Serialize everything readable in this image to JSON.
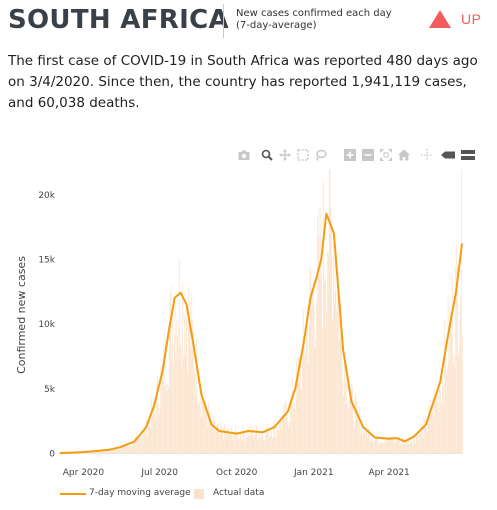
{
  "header": {
    "title": "SOUTH AFRICA",
    "caption": "New cases confirmed each day (7-day-average)",
    "trend": "UP",
    "trend_color": "#f25c5c"
  },
  "summary": "The first case of COVID-19 in South Africa was reported 480 days ago on 3/4/2020. Since then, the country has reported 1,941,119 cases, and 60,038 deaths.",
  "modebar": {
    "icons": [
      "camera-icon",
      "zoom-icon",
      "pan-icon",
      "box-select-icon",
      "lasso-select-icon",
      "zoom-in-icon",
      "zoom-out-icon",
      "autoscale-icon",
      "reset-axes-icon",
      "spike-lines-icon",
      "hover-closest-icon",
      "hover-compare-icon"
    ]
  },
  "chart_data": {
    "type": "line",
    "ylabel": "Confirmed new cases",
    "xlabel": "",
    "x_ticks": [
      "Apr 2020",
      "Jul 2020",
      "Oct 2020",
      "Jan 2021",
      "Apr 2021"
    ],
    "x_tick_dates": [
      "2020-04-01",
      "2020-07-01",
      "2020-10-01",
      "2021-01-01",
      "2021-04-01"
    ],
    "y_ticks": [
      "0",
      "5k",
      "10k",
      "15k",
      "20k"
    ],
    "y_tick_values": [
      0,
      5000,
      10000,
      15000,
      20000
    ],
    "xlim": [
      "2020-03-04",
      "2021-06-27"
    ],
    "ylim": [
      0,
      21500
    ],
    "grid": false,
    "legend_position": "bottom",
    "series": [
      {
        "name": "7-day moving average",
        "type": "line",
        "color": "#f39c12",
        "x": [
          "2020-03-04",
          "2020-03-15",
          "2020-04-01",
          "2020-04-15",
          "2020-05-01",
          "2020-05-15",
          "2020-06-01",
          "2020-06-15",
          "2020-06-25",
          "2020-07-05",
          "2020-07-12",
          "2020-07-19",
          "2020-07-26",
          "2020-08-02",
          "2020-08-10",
          "2020-08-20",
          "2020-09-01",
          "2020-09-10",
          "2020-09-20",
          "2020-10-01",
          "2020-10-15",
          "2020-11-01",
          "2020-11-15",
          "2020-12-01",
          "2020-12-10",
          "2020-12-20",
          "2020-12-28",
          "2021-01-04",
          "2021-01-10",
          "2021-01-16",
          "2021-01-25",
          "2021-02-05",
          "2021-02-15",
          "2021-03-01",
          "2021-03-15",
          "2021-04-01",
          "2021-04-10",
          "2021-04-20",
          "2021-05-01",
          "2021-05-15",
          "2021-06-01",
          "2021-06-10",
          "2021-06-20",
          "2021-06-27"
        ],
        "y": [
          0,
          20,
          80,
          150,
          250,
          450,
          900,
          2000,
          3800,
          6500,
          9500,
          12000,
          12400,
          11500,
          8500,
          4500,
          2200,
          1700,
          1600,
          1500,
          1700,
          1600,
          2000,
          3200,
          5000,
          8500,
          12000,
          13500,
          15000,
          18500,
          17000,
          8000,
          4000,
          2000,
          1200,
          1100,
          1150,
          900,
          1300,
          2200,
          5500,
          9000,
          12500,
          16200
        ]
      },
      {
        "name": "Actual data",
        "type": "bar",
        "color": "#fbe3cb"
      }
    ]
  }
}
